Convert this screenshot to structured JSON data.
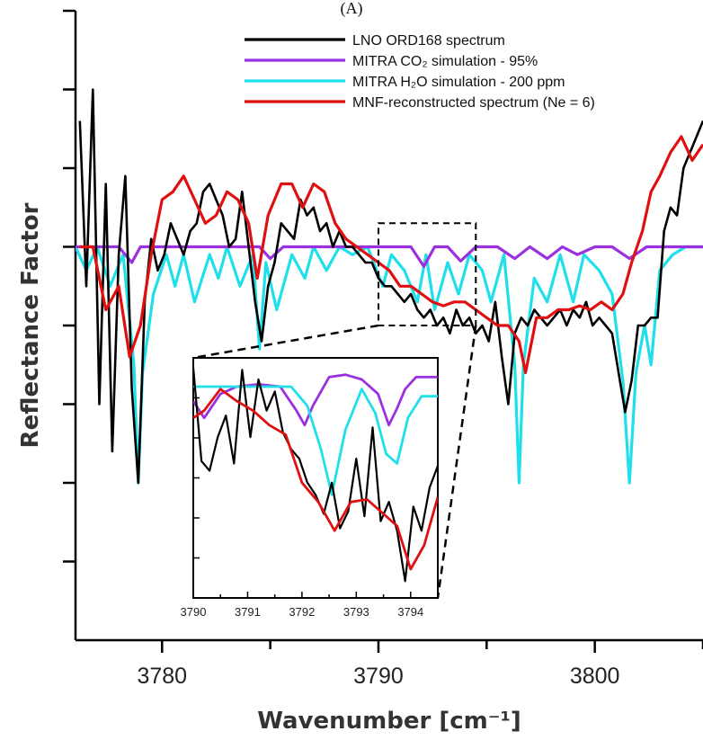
{
  "panel_label": "(A)",
  "chart_data": {
    "type": "line",
    "title": "",
    "xlabel": "Wavenumber [cm⁻¹]",
    "ylabel": "Reflectance Factor",
    "xlim": [
      3776,
      3805
    ],
    "ylim": [
      0,
      8
    ],
    "x_ticks": [
      3780,
      3790,
      3800
    ],
    "y_tick_labels": "none",
    "grid": false,
    "legend_position": "top-right",
    "series": [
      {
        "name": "LNO ORD168 spectrum",
        "color": "#000000",
        "x": [
          3776.2,
          3776.5,
          3776.8,
          3777.1,
          3777.4,
          3777.7,
          3778.0,
          3778.3,
          3778.6,
          3778.9,
          3779.2,
          3779.5,
          3779.8,
          3780.1,
          3780.4,
          3780.7,
          3781.0,
          3781.3,
          3781.6,
          3781.9,
          3782.2,
          3782.5,
          3782.8,
          3783.1,
          3783.4,
          3783.7,
          3784.0,
          3784.3,
          3784.6,
          3784.9,
          3785.2,
          3785.5,
          3785.8,
          3786.1,
          3786.4,
          3786.7,
          3787.0,
          3787.3,
          3787.6,
          3787.9,
          3788.2,
          3788.5,
          3788.8,
          3789.1,
          3789.4,
          3789.7,
          3790.0,
          3790.3,
          3790.6,
          3790.9,
          3791.2,
          3791.5,
          3791.8,
          3792.1,
          3792.4,
          3792.7,
          3793.0,
          3793.3,
          3793.6,
          3793.9,
          3794.2,
          3794.5,
          3794.8,
          3795.1,
          3795.4,
          3795.7,
          3796.0,
          3796.3,
          3796.6,
          3796.9,
          3797.2,
          3797.5,
          3797.8,
          3798.1,
          3798.4,
          3798.7,
          3799.0,
          3799.3,
          3799.6,
          3799.9,
          3800.2,
          3800.5,
          3800.8,
          3801.1,
          3801.4,
          3801.7,
          3802.0,
          3802.3,
          3802.6,
          3802.9,
          3803.2,
          3803.5,
          3803.8,
          3804.1,
          3804.4,
          3804.7,
          3805.0
        ],
        "y": [
          6.6,
          4.5,
          7.0,
          3.0,
          5.8,
          2.4,
          4.9,
          5.9,
          3.2,
          2.0,
          4.3,
          5.1,
          4.7,
          4.9,
          5.3,
          5.1,
          4.9,
          5.2,
          5.3,
          5.7,
          5.8,
          5.6,
          5.4,
          5.0,
          5.1,
          5.7,
          5.0,
          4.3,
          3.8,
          4.5,
          4.8,
          5.3,
          5.2,
          5.1,
          5.6,
          5.4,
          5.5,
          5.2,
          5.3,
          5.0,
          5.2,
          5.0,
          5.0,
          4.9,
          4.8,
          4.8,
          4.6,
          4.5,
          4.5,
          4.4,
          4.3,
          4.4,
          4.2,
          4.1,
          4.2,
          4.0,
          4.1,
          3.9,
          4.2,
          4.0,
          4.1,
          3.9,
          4.0,
          3.8,
          4.3,
          3.6,
          3.0,
          3.9,
          4.1,
          4.0,
          4.2,
          4.1,
          4.0,
          4.1,
          4.2,
          4.0,
          4.2,
          4.1,
          4.3,
          4.0,
          4.1,
          4.0,
          3.9,
          3.4,
          2.9,
          3.3,
          4.0,
          4.0,
          4.1,
          4.1,
          5.2,
          5.5,
          5.4,
          6.0,
          6.2,
          6.4,
          6.6
        ]
      },
      {
        "name": "MITRA CO₂ simulation - 95%",
        "color": "#9b30e0",
        "x": [
          3776.0,
          3777.0,
          3778.0,
          3778.6,
          3779.0,
          3779.6,
          3780.5,
          3781.5,
          3782.5,
          3783.5,
          3784.5,
          3785.0,
          3785.6,
          3786.5,
          3787.5,
          3788.5,
          3789.5,
          3790.5,
          3791.5,
          3792.1,
          3792.6,
          3793.2,
          3793.8,
          3794.5,
          3795.5,
          3796.3,
          3797.0,
          3797.8,
          3798.5,
          3799.2,
          3800.0,
          3800.8,
          3801.6,
          3802.4,
          3803.2,
          3804.0,
          3805.0
        ],
        "y": [
          5.0,
          5.0,
          5.0,
          4.8,
          5.0,
          5.0,
          5.0,
          5.0,
          5.0,
          5.0,
          5.0,
          4.85,
          5.0,
          5.0,
          5.0,
          5.0,
          5.0,
          5.0,
          5.0,
          4.75,
          5.0,
          5.0,
          4.82,
          5.0,
          5.0,
          4.85,
          5.0,
          4.85,
          5.0,
          4.9,
          5.0,
          5.0,
          4.85,
          5.0,
          5.0,
          5.0,
          5.0
        ]
      },
      {
        "name": "MITRA H₂O simulation - 200 ppm",
        "color": "#1fe0ea",
        "x": [
          3776.0,
          3776.5,
          3777.0,
          3777.6,
          3778.2,
          3778.7,
          3778.9,
          3779.1,
          3779.6,
          3780.2,
          3780.6,
          3781.0,
          3781.5,
          3782.2,
          3782.6,
          3783.0,
          3783.6,
          3784.2,
          3784.5,
          3784.8,
          3785.3,
          3786.0,
          3786.6,
          3787.0,
          3787.6,
          3788.2,
          3788.8,
          3789.5,
          3790.2,
          3790.6,
          3791.2,
          3791.8,
          3792.2,
          3792.6,
          3793.2,
          3793.7,
          3794.2,
          3794.8,
          3795.2,
          3795.8,
          3796.3,
          3796.5,
          3796.7,
          3797.2,
          3797.8,
          3798.4,
          3799.0,
          3799.5,
          3800.2,
          3800.8,
          3801.3,
          3801.6,
          3801.9,
          3802.3,
          3802.6,
          3803.0,
          3803.6,
          3804.2,
          3805.0
        ],
        "y": [
          5.0,
          4.7,
          5.0,
          4.5,
          4.9,
          3.5,
          2.0,
          3.4,
          4.4,
          4.9,
          4.5,
          4.9,
          4.3,
          4.9,
          4.6,
          5.0,
          4.5,
          4.9,
          3.7,
          4.8,
          4.2,
          4.9,
          4.6,
          5.0,
          4.7,
          5.0,
          4.9,
          5.0,
          4.5,
          4.9,
          4.7,
          4.3,
          4.9,
          4.2,
          4.8,
          4.4,
          4.9,
          4.7,
          4.3,
          4.9,
          3.5,
          2.0,
          3.5,
          4.6,
          4.3,
          4.9,
          4.3,
          4.9,
          4.7,
          4.4,
          3.3,
          2.0,
          3.4,
          4.0,
          3.5,
          4.7,
          4.9,
          5.0,
          5.0
        ]
      },
      {
        "name": "MNF-reconstructed spectrum (Ne = 6)",
        "color": "#e01010",
        "x": [
          3776.2,
          3776.8,
          3777.4,
          3778.0,
          3778.5,
          3779.0,
          3779.5,
          3780.0,
          3780.5,
          3781.0,
          3781.5,
          3782.0,
          3782.5,
          3783.0,
          3783.5,
          3784.0,
          3784.4,
          3784.9,
          3785.5,
          3786.0,
          3786.5,
          3787.0,
          3787.5,
          3788.0,
          3788.5,
          3789.0,
          3789.5,
          3790.0,
          3790.5,
          3791.0,
          3791.5,
          3792.0,
          3792.5,
          3793.0,
          3793.5,
          3794.0,
          3794.5,
          3795.0,
          3795.5,
          3796.0,
          3796.5,
          3796.8,
          3797.3,
          3797.8,
          3798.3,
          3798.8,
          3799.3,
          3799.8,
          3800.3,
          3800.8,
          3801.3,
          3801.7,
          3802.2,
          3802.6,
          3803.0,
          3803.5,
          3804.0,
          3804.5,
          3805.0
        ],
        "y": [
          5.0,
          5.0,
          4.2,
          4.5,
          3.6,
          4.0,
          4.9,
          5.6,
          5.7,
          5.9,
          5.6,
          5.3,
          5.4,
          5.7,
          5.6,
          5.3,
          4.6,
          5.4,
          5.8,
          5.8,
          5.5,
          5.8,
          5.7,
          5.3,
          5.1,
          5.0,
          4.9,
          4.8,
          4.7,
          4.5,
          4.5,
          4.4,
          4.3,
          4.25,
          4.3,
          4.3,
          4.2,
          4.1,
          4.0,
          4.0,
          3.8,
          3.4,
          4.1,
          4.1,
          4.2,
          4.2,
          4.25,
          4.2,
          4.3,
          4.2,
          4.4,
          4.8,
          5.2,
          5.7,
          5.9,
          6.2,
          6.4,
          6.1,
          6.3
        ]
      }
    ],
    "zoom_box": {
      "xlim": [
        3790,
        3794.5
      ],
      "ylim": [
        4.0,
        5.3
      ]
    },
    "inset": {
      "type": "line",
      "xlim": [
        3790,
        3794.5
      ],
      "ylim": [
        0,
        1
      ],
      "x_ticks": [
        3790,
        3791,
        3792,
        3793,
        3794
      ],
      "series": [
        {
          "name": "LNO ORD168 spectrum",
          "color": "#000000",
          "x": [
            3790.0,
            3790.15,
            3790.3,
            3790.45,
            3790.6,
            3790.75,
            3790.9,
            3791.05,
            3791.2,
            3791.35,
            3791.5,
            3791.65,
            3791.8,
            3791.95,
            3792.1,
            3792.25,
            3792.4,
            3792.55,
            3792.7,
            3792.85,
            3793.0,
            3793.15,
            3793.3,
            3793.45,
            3793.6,
            3793.75,
            3793.9,
            3794.05,
            3794.2,
            3794.35,
            3794.5
          ],
          "y": [
            0.96,
            0.57,
            0.53,
            0.67,
            0.76,
            0.56,
            0.95,
            0.67,
            0.91,
            0.78,
            0.86,
            0.69,
            0.62,
            0.58,
            0.48,
            0.43,
            0.35,
            0.48,
            0.29,
            0.36,
            0.58,
            0.34,
            0.71,
            0.32,
            0.4,
            0.28,
            0.07,
            0.38,
            0.28,
            0.46,
            0.55
          ]
        },
        {
          "name": "MITRA CO₂ simulation - 95%",
          "color": "#9b30e0",
          "x": [
            3790.0,
            3790.2,
            3790.5,
            3790.8,
            3791.2,
            3791.6,
            3791.9,
            3792.05,
            3792.2,
            3792.5,
            3792.8,
            3793.1,
            3793.4,
            3793.6,
            3793.75,
            3793.9,
            3794.1,
            3794.3,
            3794.5
          ],
          "y": [
            0.82,
            0.75,
            0.85,
            0.88,
            0.89,
            0.88,
            0.78,
            0.72,
            0.8,
            0.92,
            0.93,
            0.91,
            0.85,
            0.72,
            0.79,
            0.87,
            0.92,
            0.92,
            0.92
          ]
        },
        {
          "name": "MITRA H₂O simulation - 200 ppm",
          "color": "#1fe0ea",
          "x": [
            3790.0,
            3790.3,
            3790.6,
            3790.9,
            3791.2,
            3791.5,
            3791.8,
            3792.1,
            3792.35,
            3792.55,
            3792.8,
            3793.1,
            3793.35,
            3793.55,
            3793.75,
            3793.95,
            3794.2,
            3794.5
          ],
          "y": [
            0.88,
            0.88,
            0.88,
            0.88,
            0.88,
            0.88,
            0.88,
            0.8,
            0.62,
            0.43,
            0.7,
            0.87,
            0.77,
            0.6,
            0.56,
            0.75,
            0.84,
            0.84
          ]
        },
        {
          "name": "MNF-reconstructed spectrum (Ne = 6)",
          "color": "#e01010",
          "x": [
            3790.0,
            3790.2,
            3790.5,
            3790.8,
            3791.1,
            3791.4,
            3791.7,
            3792.0,
            3792.3,
            3792.6,
            3792.9,
            3793.2,
            3793.5,
            3793.75,
            3794.0,
            3794.25,
            3794.5
          ],
          "y": [
            0.75,
            0.78,
            0.87,
            0.82,
            0.78,
            0.72,
            0.68,
            0.48,
            0.4,
            0.28,
            0.4,
            0.41,
            0.35,
            0.3,
            0.12,
            0.22,
            0.42
          ]
        }
      ]
    }
  }
}
